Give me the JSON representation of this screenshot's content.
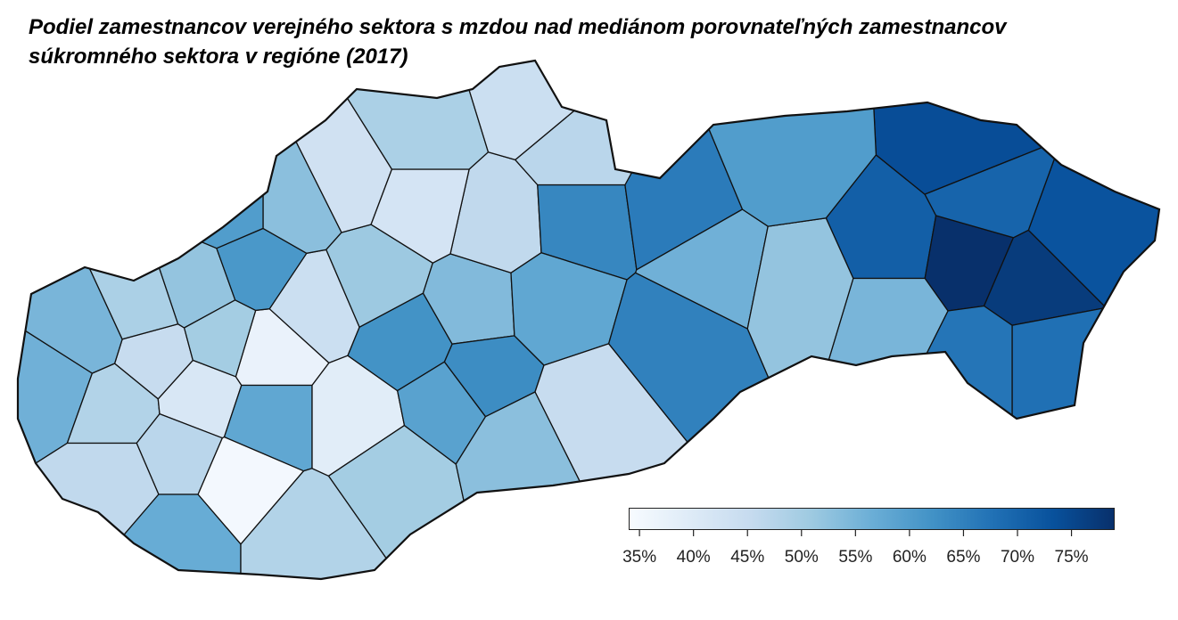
{
  "title": {
    "line1": "Podiel zamestnancov verejného sektora s mzdou nad mediánom porovnateľných zamestnancov",
    "line2": "súkromného sektora v regióne (2017)"
  },
  "legend": {
    "min": 34,
    "max": 79,
    "ticks": [
      {
        "value": 35,
        "label": "35%"
      },
      {
        "value": 40,
        "label": "40%"
      },
      {
        "value": 45,
        "label": "45%"
      },
      {
        "value": 50,
        "label": "50%"
      },
      {
        "value": 55,
        "label": "55%"
      },
      {
        "value": 60,
        "label": "60%"
      },
      {
        "value": 65,
        "label": "65%"
      },
      {
        "value": 70,
        "label": "70%"
      },
      {
        "value": 75,
        "label": "75%"
      }
    ],
    "colors": [
      "#f7fbff",
      "#deebf7",
      "#c6dbef",
      "#9ecae1",
      "#6baed6",
      "#4292c6",
      "#2171b5",
      "#08519c",
      "#08306b"
    ]
  },
  "map": {
    "outline_color": "#111111",
    "district_values_pct": [
      56,
      48,
      41,
      45,
      55,
      49,
      52,
      37,
      50,
      47,
      46,
      58,
      44,
      61,
      53,
      60,
      57,
      48,
      39,
      35,
      62,
      50,
      51,
      43,
      59,
      54,
      63,
      46,
      42,
      49,
      64,
      66,
      56,
      71,
      74,
      79,
      77,
      73,
      68,
      67,
      55,
      52,
      60,
      45,
      58,
      70,
      65,
      53,
      47,
      44
    ]
  }
}
